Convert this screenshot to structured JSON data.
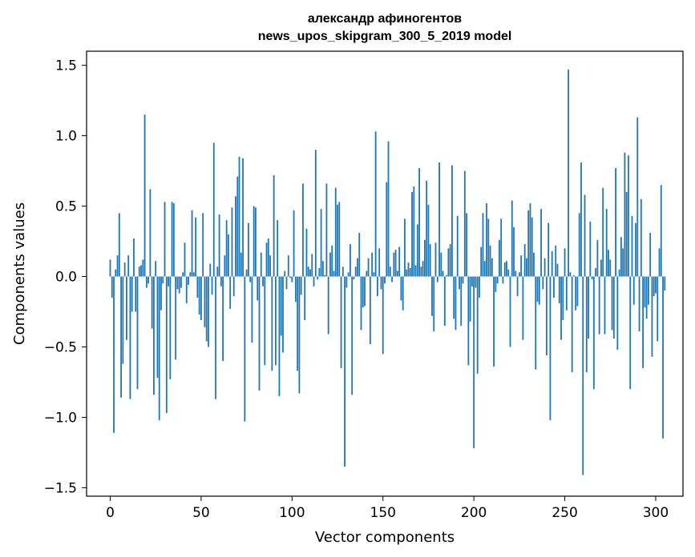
{
  "chart_data": {
    "type": "bar",
    "title_line1": "александр афиногентов",
    "title_line2": "news_upos_skipgram_300_5_2019 model",
    "xlabel": "Vector components",
    "ylabel": "Components values",
    "xlim": [
      -13,
      315
    ],
    "ylim": [
      -1.56,
      1.6
    ],
    "xticks": [
      0,
      50,
      100,
      150,
      200,
      250,
      300
    ],
    "xtick_labels": [
      "0",
      "50",
      "100",
      "150",
      "200",
      "250",
      "300"
    ],
    "yticks": [
      -1.5,
      -1.0,
      -0.5,
      0.0,
      0.5,
      1.0,
      1.5
    ],
    "ytick_labels": [
      "−1.5",
      "−1.0",
      "−0.5",
      "0.0",
      "0.5",
      "1.0",
      "1.5"
    ],
    "grid": false,
    "bar_color": "#1f77b4",
    "x_start": 0,
    "values": [
      0.12,
      -0.15,
      -1.11,
      0.05,
      0.15,
      0.45,
      -0.86,
      -0.62,
      0.1,
      -0.45,
      0.15,
      -0.87,
      -0.25,
      0.27,
      -0.25,
      -0.8,
      0.07,
      0.08,
      0.12,
      1.15,
      -0.08,
      -0.05,
      0.62,
      -0.37,
      -0.84,
      0.11,
      -0.72,
      -1.02,
      -0.24,
      -0.05,
      0.53,
      -0.97,
      -0.07,
      -0.73,
      0.53,
      0.52,
      -0.59,
      -0.09,
      -0.12,
      -0.08,
      0.03,
      0.24,
      -0.19,
      -0.06,
      0.03,
      0.47,
      0.03,
      0.42,
      -0.15,
      -0.27,
      -0.31,
      0.45,
      -0.36,
      -0.46,
      -0.5,
      0.09,
      -0.13,
      0.95,
      -0.87,
      0.07,
      0.44,
      -0.07,
      -0.6,
      0.15,
      0.4,
      0.3,
      -0.23,
      0.49,
      -0.14,
      0.57,
      0.71,
      0.85,
      0.17,
      0.84,
      -1.03,
      0.05,
      0.38,
      -0.04,
      -0.47,
      0.5,
      0.49,
      -0.17,
      -0.81,
      0.17,
      -0.07,
      -0.63,
      0.24,
      0.27,
      0.15,
      -0.67,
      0.72,
      -0.63,
      0.4,
      -0.85,
      -0.42,
      -0.54,
      0.04,
      -0.09,
      0.15,
      -0.01,
      -0.04,
      0.47,
      -0.18,
      -0.67,
      -0.83,
      -0.13,
      0.66,
      -0.31,
      0.34,
      0.07,
      0.05,
      0.16,
      -0.07,
      0.9,
      -0.02,
      0.06,
      0.48,
      0.11,
      0.01,
      0.66,
      -0.41,
      0.17,
      0.22,
      0.04,
      0.63,
      0.51,
      0.53,
      -0.65,
      0.07,
      -1.35,
      -0.08,
      0.03,
      0.23,
      -0.84,
      -0.02,
      0.07,
      0.13,
      0.31,
      -0.38,
      -0.22,
      -0.21,
      0.04,
      0.13,
      -0.48,
      0.17,
      0.03,
      1.03,
      -0.14,
      0.2,
      -0.09,
      -0.55,
      -0.05,
      0.67,
      0.96,
      0.07,
      -0.04,
      0.17,
      0.19,
      0.04,
      0.21,
      -0.17,
      -0.24,
      0.41,
      0.05,
      0.1,
      0.06,
      0.6,
      0.64,
      0.08,
      0.37,
      0.77,
      0.07,
      0.11,
      0.26,
      0.68,
      0.51,
      0.23,
      -0.28,
      -0.39,
      0.24,
      -0.04,
      0.81,
      0.17,
      0.04,
      -0.35,
      0.01,
      0.2,
      0.23,
      0.79,
      -0.3,
      -0.38,
      0.43,
      -0.09,
      -0.35,
      -0.05,
      0.75,
      0.45,
      -0.63,
      -0.32,
      -0.07,
      -1.22,
      -0.08,
      -0.69,
      -0.15,
      0.21,
      0.45,
      0.11,
      0.52,
      0.41,
      0.22,
      0.13,
      -0.64,
      -0.11,
      -0.05,
      0.26,
      0.41,
      -0.05,
      0.1,
      0.11,
      0.05,
      -0.5,
      0.54,
      0.35,
      0.04,
      -0.14,
      0.03,
      0.15,
      -0.45,
      0.23,
      0.13,
      0.47,
      0.52,
      0.42,
      0.17,
      -0.66,
      -0.18,
      -0.2,
      0.48,
      -0.09,
      0.13,
      -0.56,
      0.38,
      -1.02,
      0.18,
      -0.15,
      0.22,
      0.09,
      -0.19,
      -0.45,
      -0.31,
      0.2,
      -0.24,
      1.47,
      0.03,
      -0.68,
      0.01,
      -0.24,
      -0.21,
      0.45,
      0.81,
      -1.41,
      0.58,
      -0.68,
      -0.44,
      0.39,
      -0.02,
      -0.8,
      0.06,
      0.26,
      -0.41,
      0.12,
      0.63,
      -0.41,
      0.48,
      0.19,
      0.12,
      -0.38,
      -0.44,
      0.77,
      -0.52,
      0.05,
      0.28,
      0.2,
      0.88,
      0.6,
      0.86,
      -0.8,
      0.43,
      -0.2,
      0.38,
      1.13,
      -0.39,
      0.55,
      -0.65,
      -0.22,
      -0.3,
      -0.2,
      0.31,
      -0.57,
      -0.14,
      -0.12,
      -0.46,
      0.2,
      0.65,
      -1.15,
      -0.1
    ]
  }
}
